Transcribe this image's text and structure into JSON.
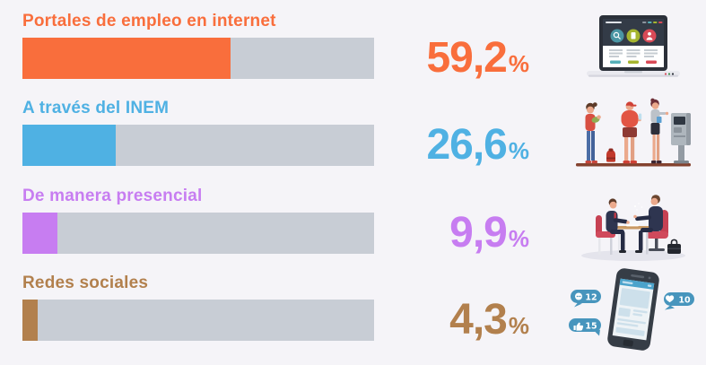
{
  "page": {
    "background_color": "#f5f4f8"
  },
  "chart_data": {
    "type": "bar",
    "orientation": "horizontal",
    "title": "",
    "unit": "%",
    "categories": [
      "Portales de empleo en internet",
      "A través del INEM",
      "De manera presencial",
      "Redes sociales"
    ],
    "values": [
      59.2,
      26.6,
      9.9,
      4.3
    ],
    "value_labels": [
      "59,2",
      "26,6",
      "9,9",
      "4,3"
    ],
    "bar_colors": [
      "#f96e3c",
      "#4fb1e3",
      "#c77df1",
      "#b2804d"
    ],
    "track_color": "#c8cdd5",
    "xlim": [
      0,
      100
    ],
    "grid": false,
    "legend": false
  },
  "rows": [
    {
      "label": "Portales de empleo en internet",
      "value": "59,2",
      "pct": 59.2,
      "color": "#f96e3c",
      "illustration": "laptop-job-portal"
    },
    {
      "label": "A través del INEM",
      "value": "26,6",
      "pct": 26.6,
      "color": "#4fb1e3",
      "illustration": "people-queue-kiosk"
    },
    {
      "label": "De manera presencial",
      "value": "9,9",
      "pct": 9.9,
      "color": "#c77df1",
      "illustration": "job-interview"
    },
    {
      "label": "Redes sociales",
      "value": "4,3",
      "pct": 4.3,
      "color": "#b2804d",
      "illustration": "smartphone-social-notifications"
    }
  ],
  "illustrations": {
    "social_bubbles": {
      "comments": "12",
      "hearts": "10",
      "likes": "15"
    }
  }
}
